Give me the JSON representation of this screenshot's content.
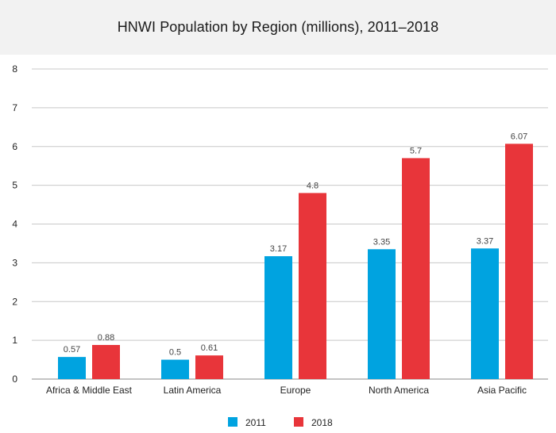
{
  "chart_data": {
    "type": "bar",
    "title": "HNWI Population by Region (millions), 2011–2018",
    "xlabel": "",
    "ylabel": "",
    "ylim": [
      0,
      8
    ],
    "yticks": [
      0,
      1,
      2,
      3,
      4,
      5,
      6,
      7,
      8
    ],
    "grid": true,
    "legend_position": "bottom",
    "categories": [
      "Africa & Middle East",
      "Latin America",
      "Europe",
      "North America",
      "Asia Pacific"
    ],
    "series": [
      {
        "name": "2011",
        "color": "#00a3e0",
        "values": [
          0.57,
          0.5,
          3.17,
          3.35,
          3.37
        ]
      },
      {
        "name": "2018",
        "color": "#e8353a",
        "values": [
          0.88,
          0.61,
          4.8,
          5.7,
          6.07
        ]
      }
    ]
  }
}
